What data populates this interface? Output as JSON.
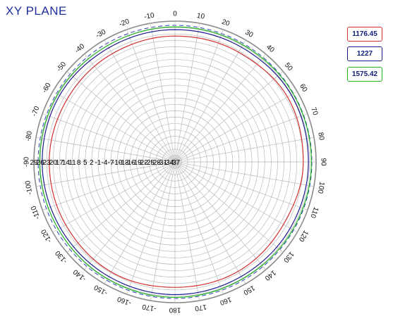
{
  "chart_data": {
    "type": "line",
    "polar": true,
    "title": "XY PLANE",
    "angle_ticks_deg": [
      0,
      10,
      20,
      30,
      40,
      50,
      60,
      70,
      80,
      90,
      100,
      110,
      120,
      130,
      140,
      150,
      160,
      170,
      180,
      -170,
      -160,
      -150,
      -140,
      -130,
      -120,
      -110,
      -100,
      -90,
      -80,
      -70,
      -60,
      -50,
      -40,
      -30,
      -20,
      -10
    ],
    "angle_labels": [
      "0",
      "10",
      "20",
      "30",
      "40",
      "50",
      "60",
      "70",
      "80",
      "90",
      "100",
      "110",
      "120",
      "130",
      "140",
      "150",
      "160",
      "170",
      "180",
      "-170",
      "-160",
      "-150",
      "-140",
      "-130",
      "-120",
      "-110",
      "-100",
      "-90",
      "-80",
      "-70",
      "-60",
      "-50",
      "-40",
      "-30",
      "-20",
      "-10"
    ],
    "radial_tick_labels": [
      "29",
      "26",
      "23",
      "20",
      "17",
      "14",
      "11",
      "8",
      "5",
      "2",
      "-1",
      "-4",
      "-7",
      "-10",
      "-13",
      "-16",
      "-19",
      "-22",
      "-25",
      "-28",
      "-31",
      "-34",
      "-37"
    ],
    "r_range": [
      -37,
      29
    ],
    "grid": true,
    "outer_reference_circle": "dashed",
    "series": [
      {
        "name": "1176.45",
        "color": "#d32f2f",
        "theta": [
          0,
          30,
          60,
          90,
          120,
          150,
          180,
          210,
          240,
          270,
          300,
          330,
          360
        ],
        "r": [
          22.0,
          22.4,
          23.8,
          23.0,
          21.6,
          22.2,
          21.8,
          22.6,
          22.0,
          21.8,
          21.4,
          21.6,
          22.0
        ]
      },
      {
        "name": "1227",
        "color": "#1a1a8c",
        "theta": [
          0,
          30,
          60,
          90,
          120,
          150,
          180,
          210,
          240,
          270,
          300,
          330,
          360
        ],
        "r": [
          25.0,
          25.1,
          25.8,
          25.4,
          25.2,
          25.0,
          25.2,
          25.0,
          24.9,
          25.1,
          25.3,
          24.8,
          25.0
        ]
      },
      {
        "name": "1575.42",
        "color": "#22b422",
        "theta": [
          0,
          30,
          60,
          90,
          120,
          150,
          180,
          210,
          240,
          270,
          300,
          330,
          360
        ],
        "r": [
          26.3,
          26.4,
          26.8,
          26.8,
          26.6,
          26.3,
          26.5,
          26.3,
          26.0,
          26.3,
          26.4,
          26.0,
          26.3
        ]
      }
    ]
  }
}
